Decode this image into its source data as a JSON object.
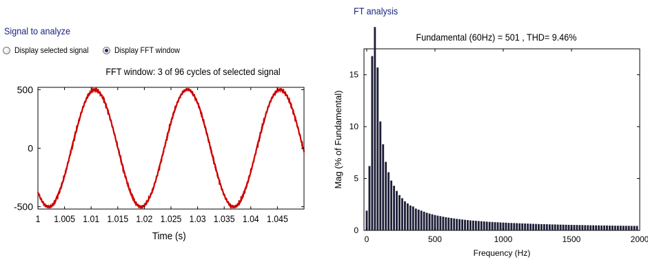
{
  "signal_panel": {
    "title": "Signal to analyze",
    "options": [
      {
        "label": "Display selected signal",
        "selected": false
      },
      {
        "label": "Display FFT window",
        "selected": true
      }
    ]
  },
  "fft_panel": {
    "title": "FT analysis"
  },
  "colors": {
    "panel_title": "#1a237e",
    "signal_line": "#cc0000",
    "bars": "#1e1e38"
  },
  "chart_data": [
    {
      "type": "line",
      "title": "FFT window: 3 of 96 cycles of selected signal",
      "xlabel": "Time (s)",
      "ylabel": "",
      "xlim": [
        1,
        1.05
      ],
      "ylim": [
        -520,
        520
      ],
      "xticks": [
        "1",
        "1.005",
        "1.01",
        "1.015",
        "1.02",
        "1.025",
        "1.03",
        "1.035",
        "1.04",
        "1.045"
      ],
      "yticks": [
        "500",
        "0",
        "-500"
      ],
      "series": [
        {
          "amplitude": 501,
          "frequency_hz": 57.5,
          "peak_time": 1.0107,
          "time_range": [
            1,
            1.05
          ]
        }
      ]
    },
    {
      "type": "bar",
      "title": "Fundamental (60Hz) = 501 , THD= 9.46%",
      "xlabel": "Frequency (Hz)",
      "ylabel": "Mag (% of Fundamental)",
      "xlim": [
        -20,
        2000
      ],
      "ylim": [
        0,
        17.5
      ],
      "xticks": [
        "0",
        "500",
        "1000",
        "1500",
        "2000"
      ],
      "yticks": [
        "0",
        "5",
        "10",
        "15"
      ],
      "bin_width_hz": 20,
      "x": [
        0,
        20,
        40,
        60,
        80,
        100,
        120,
        140,
        160,
        180,
        200,
        220,
        240,
        260,
        280,
        300,
        320,
        340,
        360,
        380,
        400,
        420,
        440,
        460,
        480,
        500,
        520,
        540,
        560,
        580,
        600,
        620,
        640,
        660,
        680,
        700,
        720,
        740,
        760,
        780,
        800,
        820,
        840,
        860,
        880,
        900,
        920,
        940,
        960,
        980,
        1000,
        1020,
        1040,
        1060,
        1080,
        1100,
        1120,
        1140,
        1160,
        1180,
        1200,
        1220,
        1240,
        1260,
        1280,
        1300,
        1320,
        1340,
        1360,
        1380,
        1400,
        1420,
        1440,
        1460,
        1480,
        1500,
        1520,
        1540,
        1560,
        1580,
        1600,
        1620,
        1640,
        1660,
        1680,
        1700,
        1720,
        1740,
        1760,
        1780,
        1800,
        1820,
        1840,
        1860,
        1880,
        1900,
        1920,
        1940,
        1960,
        1980
      ],
      "values": [
        1.9,
        6.2,
        16.8,
        19.6,
        15.7,
        10.5,
        8.3,
        6.6,
        5.6,
        4.8,
        4.3,
        3.8,
        3.4,
        3.1,
        2.8,
        2.6,
        2.4,
        2.3,
        2.1,
        2.0,
        1.9,
        1.8,
        1.7,
        1.62,
        1.55,
        1.48,
        1.42,
        1.37,
        1.32,
        1.27,
        1.23,
        1.19,
        1.15,
        1.11,
        1.08,
        1.05,
        1.02,
        0.99,
        0.96,
        0.94,
        0.92,
        0.9,
        0.88,
        0.86,
        0.84,
        0.82,
        0.81,
        0.79,
        0.78,
        0.76,
        0.75,
        0.74,
        0.72,
        0.71,
        0.7,
        0.69,
        0.68,
        0.67,
        0.66,
        0.65,
        0.64,
        0.63,
        0.62,
        0.61,
        0.6,
        0.6,
        0.59,
        0.58,
        0.57,
        0.57,
        0.56,
        0.55,
        0.55,
        0.54,
        0.53,
        0.53,
        0.52,
        0.52,
        0.51,
        0.51,
        0.5,
        0.5,
        0.49,
        0.49,
        0.48,
        0.48,
        0.47,
        0.47,
        0.47,
        0.46,
        0.46,
        0.45,
        0.45,
        0.45,
        0.44,
        0.44,
        0.44,
        0.43,
        0.43,
        0.43
      ]
    }
  ]
}
